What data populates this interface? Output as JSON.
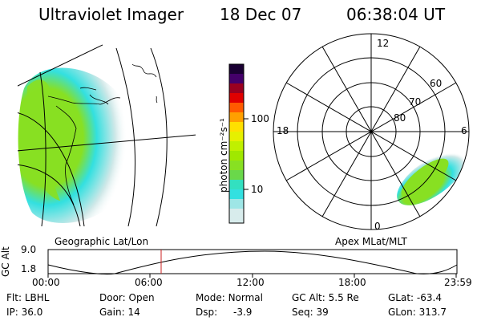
{
  "header": {
    "instrument": "Ultraviolet Imager",
    "date": "18 Dec 07",
    "time": "06:38:04 UT"
  },
  "colorbar": {
    "unit_label": "photon cm⁻²s⁻¹",
    "ticks": [
      "100",
      "10"
    ]
  },
  "geo_panel": {
    "label": "Geographic Lat/Lon"
  },
  "polar_panel": {
    "label": "Apex MLat/MLT",
    "mlt_labels": [
      "12",
      "18",
      "6",
      "0"
    ],
    "mlat_labels": [
      "60",
      "70",
      "80"
    ]
  },
  "altitude_plot": {
    "ylabel": "GC Alt",
    "y_ticks": [
      "9.0",
      "1.8"
    ],
    "x_ticks": [
      "00:00",
      "06:00",
      "12:00",
      "18:00",
      "23:59"
    ],
    "current_time_hours": 6.63
  },
  "info": {
    "row1": [
      {
        "label": "Flt:",
        "value": "LBHL"
      },
      {
        "label": "Door:",
        "value": "Open"
      },
      {
        "label": "Mode:",
        "value": "Normal"
      },
      {
        "label": "GC Alt:",
        "value": "5.5 Re"
      },
      {
        "label": "GLat:",
        "value": "-63.4"
      }
    ],
    "row2": [
      {
        "label": "IP:",
        "value": "36.0"
      },
      {
        "label": "Gain:",
        "value": "14"
      },
      {
        "label": "Dsp:",
        "value": "-3.9"
      },
      {
        "label": "Seq:",
        "value": "39"
      },
      {
        "label": "GLon:",
        "value": "313.7"
      }
    ]
  },
  "colors": {
    "cyan": "#33e0e0",
    "green": "#88e022",
    "pale": "#cfe8e8"
  }
}
